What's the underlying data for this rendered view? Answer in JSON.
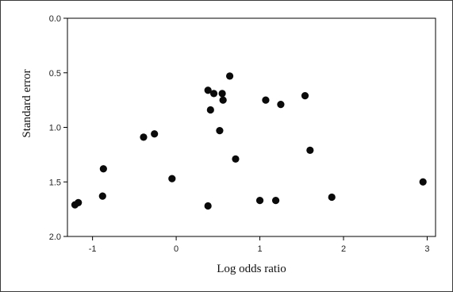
{
  "chart_data": {
    "type": "scatter",
    "title": "",
    "xlabel": "Log odds ratio",
    "ylabel": "Standard error",
    "xlim": [
      -1.3,
      3.1
    ],
    "ylim": [
      0.0,
      2.0
    ],
    "y_inverted": true,
    "x_ticks": [
      "-1",
      "0",
      "1",
      "2",
      "3"
    ],
    "y_ticks": [
      "0.0",
      "0.5",
      "1.0",
      "1.5",
      "2.0"
    ],
    "grid": false,
    "legend": "none",
    "marker_color": "#0a0a0a",
    "plot_background": "#ffffff",
    "points": [
      {
        "x": 0.64,
        "y": 0.53
      },
      {
        "x": 0.38,
        "y": 0.66
      },
      {
        "x": 0.45,
        "y": 0.69
      },
      {
        "x": 0.55,
        "y": 0.69
      },
      {
        "x": 0.56,
        "y": 0.75
      },
      {
        "x": 1.07,
        "y": 0.75
      },
      {
        "x": 1.25,
        "y": 0.79
      },
      {
        "x": 1.54,
        "y": 0.71
      },
      {
        "x": 0.41,
        "y": 0.84
      },
      {
        "x": 0.52,
        "y": 1.03
      },
      {
        "x": -0.39,
        "y": 1.09
      },
      {
        "x": -0.26,
        "y": 1.06
      },
      {
        "x": 0.71,
        "y": 1.29
      },
      {
        "x": 1.6,
        "y": 1.21
      },
      {
        "x": -0.87,
        "y": 1.38
      },
      {
        "x": -0.05,
        "y": 1.47
      },
      {
        "x": 2.95,
        "y": 1.5
      },
      {
        "x": -0.88,
        "y": 1.63
      },
      {
        "x": -1.17,
        "y": 1.69
      },
      {
        "x": -1.21,
        "y": 1.71
      },
      {
        "x": 1.0,
        "y": 1.67
      },
      {
        "x": 1.19,
        "y": 1.67
      },
      {
        "x": 1.86,
        "y": 1.64
      },
      {
        "x": 0.38,
        "y": 1.72
      }
    ]
  }
}
